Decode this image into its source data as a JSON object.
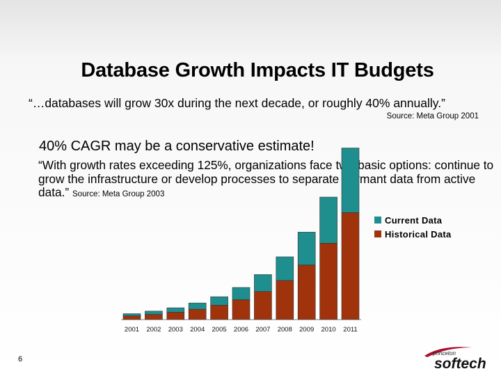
{
  "slide": {
    "title": "Database Growth Impacts IT Budgets",
    "quote1": "“…databases will grow 30x during the next decade, or roughly 40% annually.”",
    "source1": "Source: Meta Group 2001",
    "cagr_heading": "40% CAGR may be a conservative estimate!",
    "quote2_text": "“With growth rates exceeding 125%, organizations face two basic options: continue to grow the infrastructure or develop processes to separate dormant data from active data.”",
    "source2": "Source: Meta Group 2003",
    "page_number": "6",
    "logo_small": "princeton",
    "logo_main": "softech"
  },
  "colors": {
    "current": "#1f8e8e",
    "historical": "#a0330c"
  },
  "chart_data": {
    "type": "bar",
    "stacked": true,
    "categories": [
      "2001",
      "2002",
      "2003",
      "2004",
      "2005",
      "2006",
      "2007",
      "2008",
      "2009",
      "2010",
      "2011"
    ],
    "series": [
      {
        "name": "Historical Data",
        "values": [
          1.0,
          1.4,
          2.0,
          2.8,
          3.9,
          5.4,
          7.6,
          10.6,
          14.8,
          20.7,
          29.0
        ]
      },
      {
        "name": "Current Data",
        "values": [
          0.6,
          0.9,
          1.2,
          1.7,
          2.3,
          3.3,
          4.6,
          6.4,
          8.9,
          12.5,
          17.5
        ]
      }
    ],
    "ylim": [
      0,
      50
    ],
    "grid": false,
    "legend_position": "right"
  }
}
